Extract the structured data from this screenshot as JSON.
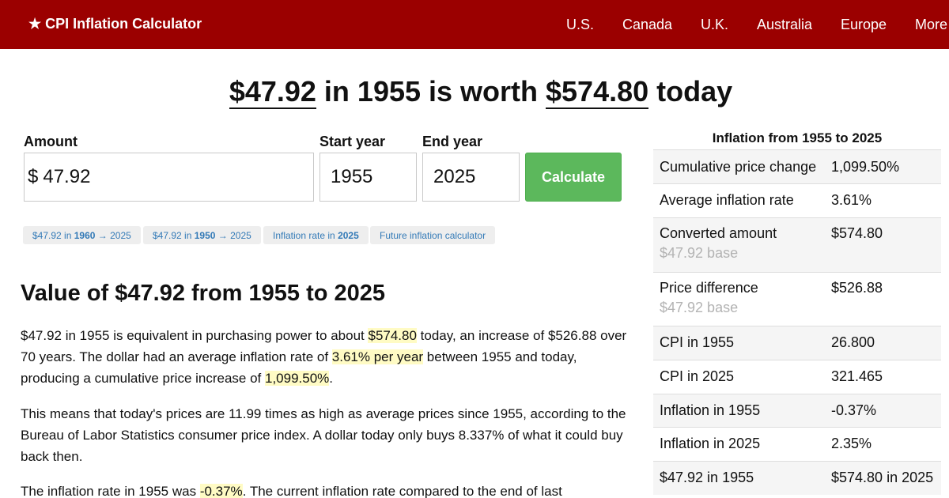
{
  "header": {
    "brand": "★ CPI Inflation Calculator",
    "nav": [
      "U.S.",
      "Canada",
      "U.K.",
      "Australia",
      "Europe",
      "More"
    ]
  },
  "headline": {
    "amount": "$47.92",
    "middle": " in 1955 is worth ",
    "result": "$574.80",
    "tail": " today"
  },
  "form": {
    "amount_label": "Amount",
    "amount_currency": "$",
    "amount_value": "47.92",
    "start_label": "Start year",
    "start_value": "1955",
    "end_label": "End year",
    "end_value": "2025",
    "calculate_label": "Calculate"
  },
  "chips": [
    {
      "pre": "$47.92 in ",
      "bold": "1960",
      "post": " → 2025"
    },
    {
      "pre": "$47.92 in ",
      "bold": "1950",
      "post": " → 2025"
    },
    {
      "pre": "Inflation rate in ",
      "bold": "2025",
      "post": ""
    },
    {
      "pre": "Future inflation calculator",
      "bold": "",
      "post": ""
    }
  ],
  "article": {
    "title": "Value of $47.92 from 1955 to 2025",
    "p1": {
      "t1": "$47.92 in 1955 is equivalent in purchasing power to about ",
      "h1": "$574.80",
      "t2": " today, an increase of $526.88 over 70 years. The dollar had an average inflation rate of ",
      "h2": "3.61% per year",
      "t3": " between 1955 and today, producing a cumulative price increase of ",
      "h3": "1,099.50%",
      "t4": "."
    },
    "p2": "This means that today's prices are 11.99 times as high as average prices since 1955, according to the Bureau of Labor Statistics consumer price index. A dollar today only buys 8.337% of what it could buy back then.",
    "p3": {
      "t1": "The inflation rate in 1955 was ",
      "h1": "-0.37%",
      "t2": ". The current inflation rate compared to the end of last"
    }
  },
  "sidebar": {
    "title": "Inflation from 1955 to 2025",
    "rows": [
      {
        "label": "Cumulative price change",
        "value": "1,099.50%",
        "sub": ""
      },
      {
        "label": "Average inflation rate",
        "value": "3.61%",
        "sub": ""
      },
      {
        "label": "Converted amount",
        "value": "$574.80",
        "sub": "$47.92 base"
      },
      {
        "label": "Price difference",
        "value": "$526.88",
        "sub": "$47.92 base"
      },
      {
        "label": "CPI in 1955",
        "value": "26.800",
        "sub": ""
      },
      {
        "label": "CPI in 2025",
        "value": "321.465",
        "sub": ""
      },
      {
        "label": "Inflation in 1955",
        "value": "-0.37%",
        "sub": ""
      },
      {
        "label": "Inflation in 2025",
        "value": "2.35%",
        "sub": ""
      },
      {
        "label": "$47.92 in 1955",
        "value": "$574.80 in 2025",
        "sub": ""
      }
    ]
  }
}
